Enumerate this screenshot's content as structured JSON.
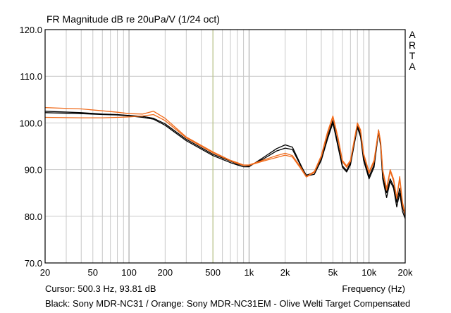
{
  "chart_data": {
    "type": "line",
    "title": "FR Magnitude dB re 20uPa/V (1/24 oct)",
    "xlabel": "Frequency (Hz)",
    "ylabel": "",
    "x_scale": "log",
    "xlim": [
      20,
      20000
    ],
    "ylim": [
      70,
      120
    ],
    "x_ticks": [
      20,
      50,
      100,
      200,
      500,
      1000,
      2000,
      5000,
      10000,
      20000
    ],
    "x_tick_labels": [
      "20",
      "50",
      "100",
      "200",
      "500",
      "1k",
      "2k",
      "5k",
      "10k",
      "20k"
    ],
    "y_ticks": [
      70,
      80,
      90,
      100,
      110,
      120
    ],
    "y_tick_labels": [
      "70.0",
      "80.0",
      "90.0",
      "100.0",
      "110.0",
      "120.0"
    ],
    "grid": true,
    "cursor_x": 500.3,
    "series": [
      {
        "color": "#000000",
        "x": [
          20,
          40,
          60,
          80,
          100,
          130,
          160,
          200,
          300,
          500,
          700,
          800,
          900,
          1000,
          1300,
          1700,
          2000,
          2300,
          2700,
          3000,
          3500,
          4000,
          4500,
          5000,
          5500,
          6000,
          6500,
          7000,
          8000,
          8500,
          9000,
          10000,
          11000,
          12000,
          12500,
          13000,
          14000,
          15000,
          16000,
          17000,
          18000,
          19000,
          20000
        ],
        "y": [
          102.2,
          102.0,
          101.8,
          101.7,
          101.5,
          101.2,
          100.8,
          99.5,
          96.2,
          93.0,
          91.5,
          91.0,
          90.6,
          90.6,
          92.5,
          94.5,
          95.3,
          94.8,
          91.0,
          88.6,
          89.0,
          92.0,
          96.5,
          100.0,
          95.0,
          90.5,
          89.5,
          91.0,
          99.0,
          97.0,
          92.0,
          88.0,
          90.5,
          98.0,
          95.0,
          88.0,
          84.0,
          87.5,
          86.0,
          82.0,
          85.0,
          81.0,
          79.5
        ]
      },
      {
        "color": "#000000",
        "x": [
          20,
          40,
          60,
          80,
          100,
          130,
          160,
          200,
          300,
          500,
          700,
          800,
          900,
          1000,
          1300,
          1700,
          2000,
          2300,
          2700,
          3000,
          3500,
          4000,
          4500,
          5000,
          5500,
          6000,
          6500,
          7000,
          8000,
          8500,
          9000,
          10000,
          11000,
          12000,
          12500,
          13000,
          14000,
          15000,
          16000,
          17000,
          18000,
          19000,
          20000
        ],
        "y": [
          102.5,
          102.2,
          101.9,
          101.8,
          101.6,
          101.4,
          101.0,
          99.8,
          96.5,
          93.3,
          91.8,
          91.2,
          90.9,
          90.8,
          92.2,
          94.0,
          94.6,
          94.3,
          90.8,
          88.8,
          89.4,
          92.4,
          97.0,
          100.5,
          95.5,
          90.8,
          89.8,
          91.5,
          99.5,
          97.5,
          92.5,
          88.5,
          91.0,
          98.5,
          95.5,
          88.5,
          85.0,
          88.0,
          86.5,
          83.0,
          86.0,
          82.0,
          80.0
        ]
      },
      {
        "color": "#f06a1a",
        "x": [
          20,
          40,
          60,
          80,
          100,
          130,
          160,
          200,
          300,
          500,
          700,
          800,
          900,
          1000,
          1300,
          1700,
          2000,
          2300,
          2700,
          3000,
          3500,
          4000,
          4500,
          5000,
          5500,
          6000,
          6500,
          7000,
          8000,
          8500,
          9000,
          10000,
          11000,
          12000,
          12500,
          13000,
          14000,
          15000,
          16000,
          17000,
          18000,
          19000,
          20000
        ],
        "y": [
          103.3,
          103.0,
          102.6,
          102.3,
          102.0,
          101.9,
          102.5,
          101.0,
          97.0,
          93.8,
          92.0,
          91.5,
          91.0,
          91.0,
          92.0,
          93.0,
          93.5,
          93.0,
          90.5,
          88.5,
          89.6,
          93.0,
          98.0,
          101.5,
          97.0,
          92.0,
          90.8,
          92.0,
          100.0,
          98.5,
          93.5,
          89.5,
          92.0,
          98.5,
          96.0,
          90.0,
          86.0,
          90.0,
          88.0,
          84.0,
          88.5,
          83.0,
          80.5
        ]
      },
      {
        "color": "#f06a1a",
        "x": [
          20,
          40,
          60,
          80,
          100,
          130,
          160,
          200,
          300,
          500,
          700,
          800,
          900,
          1000,
          1300,
          1700,
          2000,
          2300,
          2700,
          3000,
          3500,
          4000,
          4500,
          5000,
          5500,
          6000,
          6500,
          7000,
          8000,
          8500,
          9000,
          10000,
          11000,
          12000,
          12500,
          13000,
          14000,
          15000,
          16000,
          17000,
          18000,
          19000,
          20000
        ],
        "y": [
          101.2,
          101.1,
          101.1,
          101.2,
          101.3,
          101.5,
          101.8,
          100.5,
          96.8,
          93.6,
          91.9,
          91.3,
          90.9,
          90.9,
          91.8,
          92.6,
          93.1,
          92.7,
          90.2,
          88.4,
          89.4,
          92.7,
          97.6,
          101.2,
          96.6,
          91.7,
          90.5,
          91.7,
          99.7,
          98.2,
          93.2,
          89.2,
          91.6,
          98.2,
          95.7,
          89.6,
          85.6,
          89.6,
          87.6,
          83.8,
          88.0,
          82.6,
          80.2
        ]
      }
    ]
  },
  "brand": "A\nR\nT\nA",
  "cursor_readout": "Cursor: 500.3 Hz, 93.81 dB",
  "caption": "Black: Sony MDR-NC31 / Orange: Sony MDR-NC31EM - Olive Welti Target Compensated"
}
